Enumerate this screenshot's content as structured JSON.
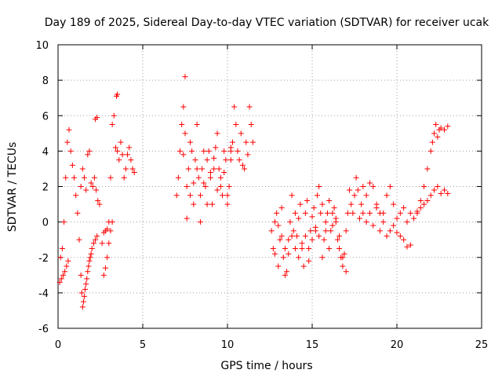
{
  "chart_data": {
    "type": "scatter",
    "title": "Day 189 of 2025, Sidereal Day-to-day VTEC variation (SDTVAR) for receiver ucak",
    "xlabel": "GPS time / hours",
    "ylabel": "SDTVAR / TECUs",
    "xlim": [
      0,
      25
    ],
    "ylim": [
      -6,
      10
    ],
    "xticks": [
      "0",
      "5",
      "10",
      "15",
      "20",
      "25"
    ],
    "yticks": [
      "-6",
      "-4",
      "-2",
      "0",
      "2",
      "4",
      "6",
      "8",
      "10"
    ],
    "grid": true,
    "marker": "+",
    "color": "#ff0000",
    "series": [
      {
        "name": "SDTVAR",
        "segments": [
          {
            "x": [
              0.15,
              0.25,
              0.35,
              0.45,
              0.55,
              0.65,
              0.75,
              0.85,
              0.95,
              1.05,
              1.15,
              1.25,
              1.35,
              1.45,
              1.55,
              1.65,
              1.75,
              1.85,
              1.95,
              2.05,
              2.15,
              2.25,
              2.35,
              2.45
            ],
            "y": [
              -2.0,
              -1.5,
              0.0,
              2.5,
              4.5,
              5.2,
              4.0,
              3.2,
              2.5,
              1.5,
              0.5,
              -1.0,
              2.0,
              3.0,
              2.5,
              1.8,
              3.8,
              4.0,
              2.2,
              2.0,
              2.5,
              1.8,
              1.2,
              1.0
            ]
          },
          {
            "x": [
              0.1,
              0.2,
              0.3,
              0.4,
              0.5,
              0.6
            ],
            "y": [
              -3.4,
              -3.2,
              -3.0,
              -2.8,
              -2.5,
              -2.2
            ]
          },
          {
            "x": [
              1.35,
              1.4,
              1.45,
              1.5,
              1.55,
              1.6,
              1.65,
              1.7,
              1.75,
              1.8,
              1.85,
              1.9,
              1.95,
              2.0,
              2.1,
              2.2,
              2.3
            ],
            "y": [
              -3.0,
              -4.0,
              -4.8,
              -4.5,
              -4.2,
              -3.8,
              -3.5,
              -3.2,
              -2.8,
              -2.5,
              -2.2,
              -2.0,
              -1.8,
              -1.5,
              -1.2,
              -1.0,
              -0.8
            ]
          },
          {
            "x": [
              2.6,
              2.7,
              2.8,
              2.9,
              3.0,
              3.1,
              3.2,
              3.3,
              3.4,
              3.5,
              3.6,
              3.7,
              3.8,
              3.9,
              4.0,
              4.1,
              4.2,
              4.3,
              4.4,
              4.5
            ],
            "y": [
              -1.2,
              -0.6,
              -0.5,
              -0.4,
              0.0,
              2.5,
              5.5,
              6.0,
              4.2,
              4.0,
              3.5,
              4.5,
              3.8,
              2.5,
              3.0,
              3.8,
              4.2,
              3.5,
              3.0,
              2.8
            ]
          },
          {
            "x": [
              2.7,
              2.8,
              2.9,
              3.0,
              3.1,
              3.2
            ],
            "y": [
              -3.0,
              -2.6,
              -2.0,
              -1.2,
              -0.5,
              0.0
            ]
          },
          {
            "x": [
              3.45,
              3.5,
              2.2,
              2.3,
              7.5
            ],
            "y": [
              7.1,
              7.2,
              5.8,
              5.9,
              8.2
            ]
          },
          {
            "x": [
              7.0,
              7.1,
              7.2,
              7.3,
              7.4,
              7.5,
              7.6,
              7.7,
              7.8,
              7.9,
              8.0,
              8.1,
              8.2,
              8.3,
              8.4,
              8.5,
              8.6,
              8.7,
              8.8,
              8.9,
              9.0,
              9.1,
              9.2,
              9.3,
              9.4,
              9.5,
              9.6,
              9.7,
              9.8,
              9.9,
              10.0,
              10.1,
              10.2
            ],
            "y": [
              1.5,
              2.5,
              4.0,
              5.5,
              6.5,
              5.0,
              2.0,
              3.0,
              4.5,
              4.0,
              1.0,
              3.5,
              5.5,
              2.5,
              1.5,
              3.0,
              4.0,
              2.0,
              3.5,
              4.0,
              2.5,
              1.0,
              3.0,
              4.2,
              5.0,
              3.0,
              2.0,
              1.5,
              2.8,
              3.5,
              1.5,
              2.0,
              3.5
            ]
          },
          {
            "x": [
              7.4,
              7.6,
              7.8,
              8.0,
              8.2,
              8.4,
              8.6,
              8.8,
              9.0,
              9.2,
              9.4,
              9.6,
              9.8,
              10.0,
              10.2
            ],
            "y": [
              3.8,
              0.2,
              1.5,
              2.2,
              3.0,
              0.0,
              2.2,
              1.0,
              2.8,
              3.6,
              1.8,
              2.5,
              4.0,
              1.0,
              4.2
            ]
          },
          {
            "x": [
              10.2,
              10.3,
              10.4,
              10.5,
              10.6,
              10.7,
              10.8,
              10.9,
              11.0,
              11.1,
              11.2,
              11.3,
              11.4,
              11.5
            ],
            "y": [
              4.0,
              4.5,
              6.5,
              5.5,
              4.0,
              3.5,
              5.0,
              3.2,
              3.0,
              4.5,
              3.8,
              6.5,
              5.5,
              4.5
            ]
          },
          {
            "x": [
              12.6,
              12.7,
              12.8,
              12.9,
              13.0,
              13.1,
              13.2,
              13.3,
              13.4,
              13.5,
              13.6,
              13.7,
              13.8,
              13.9,
              14.0,
              14.1,
              14.2,
              14.3,
              14.4,
              14.5,
              14.6,
              14.7,
              14.8,
              14.9,
              15.0,
              15.1,
              15.2,
              15.3,
              15.4,
              15.5,
              15.6,
              15.7,
              15.8,
              15.9,
              16.0,
              16.1,
              16.2,
              16.3,
              16.4,
              16.5,
              16.6,
              16.7,
              16.8,
              16.9,
              17.0,
              17.1,
              17.2,
              17.3,
              17.4,
              17.5,
              17.6,
              17.7,
              17.8,
              17.9,
              18.0
            ],
            "y": [
              -0.5,
              -1.5,
              0.0,
              0.5,
              -0.2,
              -1.0,
              0.8,
              -2.0,
              -1.5,
              -2.8,
              -1.0,
              0.0,
              1.5,
              -0.5,
              0.5,
              -0.8,
              0.2,
              1.0,
              -1.2,
              -2.5,
              0.5,
              1.2,
              -1.5,
              -0.5,
              0.3,
              0.8,
              -0.3,
              1.5,
              2.0,
              0.5,
              1.0,
              -1.0,
              -0.5,
              0.5,
              1.2,
              -0.5,
              0.5,
              0.8,
              0.2,
              -1.0,
              -1.5,
              -2.0,
              -2.5,
              -1.8,
              -0.5,
              0.5,
              1.8,
              1.0,
              0.5,
              1.5,
              2.5,
              1.8,
              0.2,
              1.0,
              0.5
            ]
          },
          {
            "x": [
              12.8,
              13.0,
              13.2,
              13.4,
              13.6,
              13.8,
              14.0,
              14.2,
              14.4,
              14.6,
              14.8,
              15.0,
              15.2,
              15.4,
              15.6,
              15.8,
              16.0,
              16.2,
              16.4,
              16.6,
              16.8,
              17.0
            ],
            "y": [
              -1.8,
              -2.5,
              -0.8,
              -3.0,
              -1.8,
              -0.8,
              -1.5,
              -2.0,
              -1.5,
              -0.8,
              -2.2,
              -1.0,
              -0.5,
              -0.8,
              -2.0,
              0.0,
              -1.5,
              -0.2,
              0.0,
              -0.8,
              -2.0,
              -2.8
            ]
          },
          {
            "x": [
              18.0,
              18.2,
              18.4,
              18.6,
              18.8,
              19.0,
              19.2,
              19.4,
              19.6,
              19.8,
              20.0,
              20.2,
              20.4,
              20.6,
              20.8,
              21.0,
              21.2,
              21.4,
              21.6,
              21.8,
              22.0,
              22.2,
              22.4,
              22.6,
              22.8,
              23.0
            ],
            "y": [
              2.0,
              1.5,
              2.2,
              2.0,
              1.0,
              0.5,
              0.0,
              1.5,
              2.0,
              1.0,
              0.2,
              0.5,
              0.8,
              0.0,
              0.5,
              0.2,
              0.6,
              0.8,
              1.0,
              1.2,
              1.5,
              1.8,
              2.0,
              1.6,
              1.8,
              1.6
            ]
          },
          {
            "x": [
              18.2,
              18.4,
              18.6,
              18.8,
              19.0,
              19.2,
              19.4,
              19.6,
              19.8,
              20.0,
              20.2,
              20.4,
              20.6,
              20.8
            ],
            "y": [
              0.0,
              0.5,
              -0.2,
              0.8,
              -0.5,
              0.5,
              -0.8,
              -0.5,
              -0.2,
              -0.6,
              -0.8,
              -1.0,
              -1.4,
              -1.3
            ]
          },
          {
            "x": [
              21.2,
              21.4,
              21.6,
              21.8,
              22.0,
              22.1,
              22.2,
              22.3,
              22.4,
              22.5,
              22.6,
              22.8,
              23.0
            ],
            "y": [
              0.5,
              1.2,
              2.0,
              3.0,
              4.0,
              4.5,
              5.0,
              5.5,
              4.8,
              5.2,
              5.3,
              5.2,
              5.4
            ]
          }
        ]
      }
    ]
  }
}
